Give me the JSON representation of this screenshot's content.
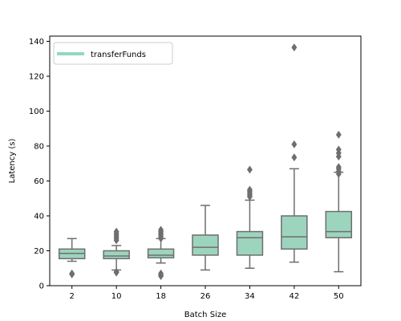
{
  "chart_data": {
    "type": "box",
    "title": "",
    "xlabel": "Batch Size",
    "ylabel": "Latency (s)",
    "categories": [
      "2",
      "10",
      "18",
      "26",
      "34",
      "42",
      "50"
    ],
    "ylim": [
      0,
      143
    ],
    "yticks": [
      0,
      20,
      40,
      60,
      80,
      100,
      120,
      140
    ],
    "grid": false,
    "legend": {
      "position": "top-left",
      "entries": [
        "transferFunds"
      ]
    },
    "colors": {
      "box_fill": "#9dd4be",
      "box_edge": "#6e6e6e",
      "legend_swatch": "#8fd9c1"
    },
    "series": [
      {
        "name": "transferFunds",
        "boxes": [
          {
            "category": "2",
            "whisker_low": 14,
            "q1": 15.5,
            "median": 18.5,
            "q3": 21,
            "whisker_high": 27,
            "outliers": [
              7,
              6.5
            ]
          },
          {
            "category": "10",
            "whisker_low": 9,
            "q1": 15.5,
            "median": 17,
            "q3": 20,
            "whisker_high": 23,
            "outliers": [
              8,
              7.5,
              26,
              27,
              28,
              29,
              30,
              31
            ]
          },
          {
            "category": "18",
            "whisker_low": 13,
            "q1": 16,
            "median": 17.5,
            "q3": 21,
            "whisker_high": 27,
            "outliers": [
              7,
              6,
              5.5,
              27,
              28,
              29,
              30,
              31,
              32
            ]
          },
          {
            "category": "26",
            "whisker_low": 9,
            "q1": 17.5,
            "median": 22,
            "q3": 29,
            "whisker_high": 46,
            "outliers": []
          },
          {
            "category": "34",
            "whisker_low": 10,
            "q1": 17.5,
            "median": 27.5,
            "q3": 31,
            "whisker_high": 49,
            "outliers": [
              51,
              52,
              53,
              54,
              55,
              66.5
            ]
          },
          {
            "category": "42",
            "whisker_low": 13.5,
            "q1": 21,
            "median": 28,
            "q3": 40,
            "whisker_high": 67,
            "outliers": [
              73.5,
              81,
              136.5
            ]
          },
          {
            "category": "50",
            "whisker_low": 8,
            "q1": 27.5,
            "median": 31,
            "q3": 42.5,
            "whisker_high": 65,
            "outliers": [
              64,
              65.5,
              67,
              68,
              74,
              76,
              78,
              86.5
            ]
          }
        ]
      }
    ]
  }
}
